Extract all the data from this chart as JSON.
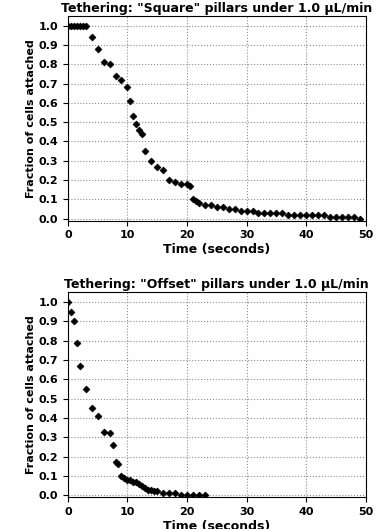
{
  "square_title": "Tethering: \"Square\" pillars under 1.0 μL/min",
  "offset_title": "Tethering: \"Offset\" pillars under 1.0 μL/min",
  "xlabel": "Time (seconds)",
  "ylabel": "Fraction of cells attached",
  "xlim": [
    0,
    50
  ],
  "xticks": [
    0,
    10,
    20,
    30,
    40,
    50
  ],
  "yticks": [
    0.0,
    0.1,
    0.2,
    0.3,
    0.4,
    0.5,
    0.6,
    0.7,
    0.8,
    0.9,
    1.0
  ],
  "marker_color": "black",
  "square_x": [
    0,
    0.5,
    1,
    1.5,
    2,
    2.5,
    3,
    4,
    5,
    6,
    7,
    8,
    9,
    10,
    10.5,
    11,
    11.5,
    12,
    12.5,
    13,
    14,
    15,
    16,
    17,
    18,
    19,
    20,
    20.5,
    21,
    21.5,
    22,
    23,
    24,
    25,
    26,
    27,
    28,
    29,
    30,
    31,
    32,
    33,
    34,
    35,
    36,
    37,
    38,
    39,
    40,
    41,
    42,
    43,
    44,
    45,
    46,
    47,
    48,
    49
  ],
  "square_y": [
    1.0,
    1.0,
    1.0,
    1.0,
    1.0,
    1.0,
    1.0,
    0.94,
    0.88,
    0.81,
    0.8,
    0.74,
    0.72,
    0.68,
    0.61,
    0.53,
    0.49,
    0.46,
    0.44,
    0.35,
    0.3,
    0.27,
    0.25,
    0.2,
    0.19,
    0.18,
    0.18,
    0.17,
    0.1,
    0.09,
    0.08,
    0.07,
    0.07,
    0.06,
    0.06,
    0.05,
    0.05,
    0.04,
    0.04,
    0.04,
    0.03,
    0.03,
    0.03,
    0.03,
    0.03,
    0.02,
    0.02,
    0.02,
    0.02,
    0.02,
    0.02,
    0.02,
    0.01,
    0.01,
    0.01,
    0.01,
    0.01,
    0.0
  ],
  "offset_x": [
    0,
    0.5,
    1,
    1.5,
    2,
    3,
    4,
    5,
    6,
    7,
    7.5,
    8,
    8.5,
    9,
    9.5,
    10,
    10.5,
    11,
    11.5,
    12,
    12.5,
    13,
    13.5,
    14,
    14.5,
    15,
    16,
    17,
    18,
    19,
    20,
    21,
    22,
    23
  ],
  "offset_y": [
    1.0,
    0.95,
    0.9,
    0.79,
    0.67,
    0.55,
    0.45,
    0.41,
    0.33,
    0.32,
    0.26,
    0.17,
    0.16,
    0.1,
    0.09,
    0.08,
    0.08,
    0.07,
    0.07,
    0.06,
    0.05,
    0.04,
    0.03,
    0.03,
    0.02,
    0.02,
    0.01,
    0.01,
    0.01,
    0.0,
    0.0,
    0.0,
    0.0,
    0.0
  ]
}
